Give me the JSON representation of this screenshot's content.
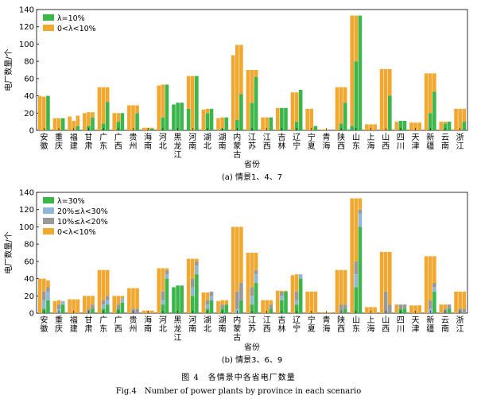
{
  "figure": {
    "caption_cn": "图 4　各情景中各省电厂数量",
    "caption_en": "Fig.4　Number of power plants by province in each scenario"
  },
  "chart_data": [
    {
      "type": "bar",
      "subtitle": "(a) 情景1、4、7",
      "xlabel": "省份",
      "ylabel": "电厂数量/个",
      "ylim": [
        0,
        140
      ],
      "yticks": [
        0,
        20,
        40,
        60,
        80,
        100,
        120,
        140
      ],
      "grid": false,
      "legend_position": "top-left",
      "categories": [
        "安徽",
        "重庆",
        "福建",
        "甘肃",
        "广东",
        "广西",
        "贵州",
        "海南",
        "河北",
        "黑龙江",
        "河南",
        "湖北",
        "湖南",
        "内蒙古",
        "江苏",
        "江西",
        "吉林",
        "辽宁",
        "宁夏",
        "青海",
        "陕西",
        "山东",
        "上海",
        "山西",
        "四川",
        "天津",
        "新疆",
        "云南",
        "浙江"
      ],
      "bars_per_category": 3,
      "series": [
        {
          "name": "λ=10%",
          "color": "#3cb54a",
          "values": [
            [
              0,
              0,
              40
            ],
            [
              0,
              0,
              14
            ],
            [
              0,
              0,
              5
            ],
            [
              0,
              5,
              15
            ],
            [
              0,
              8,
              33
            ],
            [
              0,
              10,
              20
            ],
            [
              0,
              0,
              20
            ],
            [
              0,
              0,
              2
            ],
            [
              0,
              15,
              53
            ],
            [
              30,
              32,
              32
            ],
            [
              25,
              0,
              63
            ],
            [
              0,
              20,
              25
            ],
            [
              0,
              2,
              15
            ],
            [
              0,
              12,
              42
            ],
            [
              0,
              32,
              62
            ],
            [
              0,
              0,
              15
            ],
            [
              0,
              26,
              26
            ],
            [
              0,
              10,
              47
            ],
            [
              0,
              0,
              5
            ],
            [
              0,
              0,
              0
            ],
            [
              0,
              8,
              32
            ],
            [
              5,
              80,
              133
            ],
            [
              0,
              0,
              0
            ],
            [
              0,
              0,
              40
            ],
            [
              0,
              11,
              11
            ],
            [
              0,
              0,
              0
            ],
            [
              0,
              20,
              45
            ],
            [
              0,
              8,
              10
            ],
            [
              0,
              0,
              10
            ]
          ]
        },
        {
          "name": "0<λ<10%",
          "color": "#f0a830",
          "values": [
            [
              40,
              39,
              0
            ],
            [
              14,
              14,
              0
            ],
            [
              16,
              11,
              12
            ],
            [
              20,
              16,
              6
            ],
            [
              50,
              42,
              17
            ],
            [
              20,
              10,
              0
            ],
            [
              29,
              29,
              9
            ],
            [
              3,
              3,
              1
            ],
            [
              52,
              38,
              0
            ],
            [
              0,
              0,
              0
            ],
            [
              38,
              63,
              0
            ],
            [
              24,
              5,
              0
            ],
            [
              14,
              13,
              0
            ],
            [
              87,
              87,
              57
            ],
            [
              70,
              38,
              8
            ],
            [
              15,
              15,
              0
            ],
            [
              26,
              0,
              0
            ],
            [
              44,
              34,
              0
            ],
            [
              25,
              25,
              0
            ],
            [
              1,
              1,
              0
            ],
            [
              50,
              42,
              18
            ],
            [
              128,
              53,
              0
            ],
            [
              7,
              7,
              7
            ],
            [
              71,
              71,
              31
            ],
            [
              10,
              0,
              0
            ],
            [
              9,
              9,
              9
            ],
            [
              66,
              46,
              21
            ],
            [
              10,
              2,
              0
            ],
            [
              25,
              25,
              15
            ]
          ]
        }
      ]
    },
    {
      "type": "bar",
      "subtitle": "(b) 情景3、6、9",
      "xlabel": "省份",
      "ylabel": "电厂数量/个",
      "ylim": [
        0,
        140
      ],
      "yticks": [
        0,
        20,
        40,
        60,
        80,
        100,
        120,
        140
      ],
      "grid": false,
      "legend_position": "top-left",
      "categories": [
        "安徽",
        "重庆",
        "福建",
        "甘肃",
        "广东",
        "广西",
        "贵州",
        "海南",
        "河北",
        "黑龙江",
        "河南",
        "湖北",
        "湖南",
        "内蒙古",
        "江苏",
        "江西",
        "吉林",
        "辽宁",
        "宁夏",
        "青海",
        "陕西",
        "山东",
        "上海",
        "山西",
        "四川",
        "天津",
        "新疆",
        "云南",
        "浙江"
      ],
      "bars_per_category": 3,
      "series": [
        {
          "name": "λ=30%",
          "color": "#3cb54a",
          "values": [
            [
              0,
              5,
              15
            ],
            [
              0,
              0,
              10
            ],
            [
              0,
              0,
              0
            ],
            [
              0,
              0,
              5
            ],
            [
              0,
              5,
              10
            ],
            [
              0,
              5,
              12
            ],
            [
              0,
              0,
              0
            ],
            [
              0,
              0,
              0
            ],
            [
              0,
              10,
              40
            ],
            [
              30,
              32,
              32
            ],
            [
              0,
              20,
              45
            ],
            [
              0,
              5,
              15
            ],
            [
              0,
              5,
              10
            ],
            [
              0,
              0,
              15
            ],
            [
              0,
              10,
              35
            ],
            [
              0,
              0,
              5
            ],
            [
              0,
              15,
              25
            ],
            [
              0,
              10,
              40
            ],
            [
              0,
              0,
              0
            ],
            [
              0,
              0,
              0
            ],
            [
              0,
              0,
              5
            ],
            [
              0,
              30,
              100
            ],
            [
              0,
              0,
              0
            ],
            [
              0,
              0,
              0
            ],
            [
              0,
              5,
              5
            ],
            [
              0,
              0,
              0
            ],
            [
              0,
              0,
              25
            ],
            [
              0,
              0,
              5
            ],
            [
              0,
              0,
              0
            ]
          ]
        },
        {
          "name": "20%≤λ<30%",
          "color": "#8fb8d8",
          "values": [
            [
              0,
              10,
              10
            ],
            [
              0,
              5,
              4
            ],
            [
              0,
              0,
              0
            ],
            [
              0,
              0,
              0
            ],
            [
              0,
              5,
              5
            ],
            [
              0,
              0,
              5
            ],
            [
              0,
              0,
              0
            ],
            [
              0,
              0,
              0
            ],
            [
              0,
              5,
              5
            ],
            [
              0,
              0,
              0
            ],
            [
              0,
              10,
              10
            ],
            [
              0,
              5,
              5
            ],
            [
              0,
              0,
              0
            ],
            [
              0,
              5,
              0
            ],
            [
              0,
              10,
              10
            ],
            [
              0,
              0,
              0
            ],
            [
              0,
              5,
              0
            ],
            [
              0,
              5,
              5
            ],
            [
              0,
              0,
              0
            ],
            [
              0,
              0,
              0
            ],
            [
              0,
              0,
              0
            ],
            [
              0,
              15,
              15
            ],
            [
              0,
              0,
              0
            ],
            [
              0,
              0,
              0
            ],
            [
              0,
              0,
              0
            ],
            [
              0,
              0,
              0
            ],
            [
              0,
              5,
              5
            ],
            [
              0,
              0,
              0
            ],
            [
              0,
              0,
              0
            ]
          ]
        },
        {
          "name": "10%≤λ<20%",
          "color": "#999999",
          "values": [
            [
              0,
              10,
              5
            ],
            [
              0,
              5,
              0
            ],
            [
              0,
              0,
              0
            ],
            [
              0,
              5,
              5
            ],
            [
              0,
              5,
              5
            ],
            [
              0,
              5,
              0
            ],
            [
              0,
              5,
              5
            ],
            [
              0,
              0,
              0
            ],
            [
              0,
              10,
              5
            ],
            [
              0,
              0,
              0
            ],
            [
              0,
              10,
              5
            ],
            [
              0,
              5,
              5
            ],
            [
              0,
              5,
              0
            ],
            [
              0,
              20,
              20
            ],
            [
              0,
              10,
              5
            ],
            [
              0,
              0,
              5
            ],
            [
              0,
              5,
              0
            ],
            [
              0,
              10,
              0
            ],
            [
              0,
              0,
              0
            ],
            [
              0,
              0,
              0
            ],
            [
              0,
              10,
              5
            ],
            [
              0,
              15,
              5
            ],
            [
              0,
              0,
              0
            ],
            [
              0,
              25,
              10
            ],
            [
              0,
              5,
              5
            ],
            [
              0,
              0,
              0
            ],
            [
              0,
              10,
              5
            ],
            [
              0,
              5,
              5
            ],
            [
              0,
              5,
              5
            ]
          ]
        },
        {
          "name": "0<λ<10%",
          "color": "#f0a830",
          "values": [
            [
              40,
              15,
              8
            ],
            [
              14,
              5,
              0
            ],
            [
              16,
              16,
              16
            ],
            [
              20,
              15,
              10
            ],
            [
              50,
              35,
              30
            ],
            [
              20,
              10,
              3
            ],
            [
              29,
              24,
              24
            ],
            [
              3,
              3,
              3
            ],
            [
              52,
              27,
              2
            ],
            [
              0,
              0,
              0
            ],
            [
              63,
              23,
              3
            ],
            [
              24,
              9,
              0
            ],
            [
              14,
              5,
              5
            ],
            [
              100,
              75,
              65
            ],
            [
              70,
              40,
              20
            ],
            [
              15,
              15,
              5
            ],
            [
              26,
              1,
              1
            ],
            [
              44,
              20,
              0
            ],
            [
              25,
              25,
              25
            ],
            [
              1,
              1,
              1
            ],
            [
              50,
              40,
              40
            ],
            [
              133,
              73,
              13
            ],
            [
              7,
              7,
              7
            ],
            [
              71,
              46,
              61
            ],
            [
              10,
              0,
              0
            ],
            [
              9,
              9,
              9
            ],
            [
              66,
              51,
              31
            ],
            [
              10,
              5,
              0
            ],
            [
              25,
              20,
              20
            ]
          ]
        }
      ]
    }
  ]
}
